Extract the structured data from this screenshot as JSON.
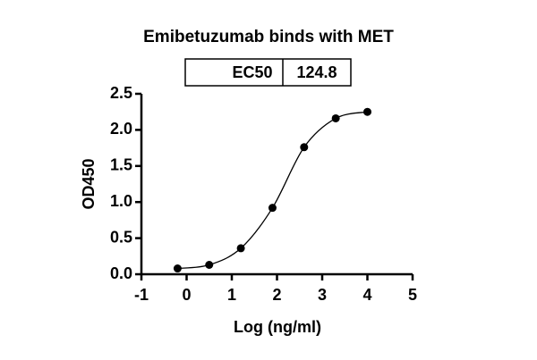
{
  "chart_data": {
    "type": "scatter",
    "title": "Emibetuzumab binds with MET",
    "annotation_table": [
      "EC50",
      "124.8"
    ],
    "x_label": "Log (ng/ml)",
    "y_label": "OD450",
    "series": [
      {
        "color": "#000000",
        "x": [
          -0.2,
          0.5,
          1.2,
          1.9,
          2.6,
          3.3,
          4.0
        ],
        "values": [
          0.08,
          0.13,
          0.36,
          0.92,
          1.76,
          2.16,
          2.25
        ]
      }
    ],
    "fit_curve": true,
    "xlim": [
      -1,
      5
    ],
    "xticks": [
      -1,
      0,
      1,
      2,
      3,
      4,
      5
    ],
    "ylim": [
      0,
      2.5
    ],
    "yticks": [
      {
        "value": 0,
        "label": "0.0"
      },
      0.5,
      {
        "value": 1,
        "label": "1.0"
      },
      1.5,
      {
        "value": 2,
        "label": "2.0"
      },
      2.5
    ]
  }
}
